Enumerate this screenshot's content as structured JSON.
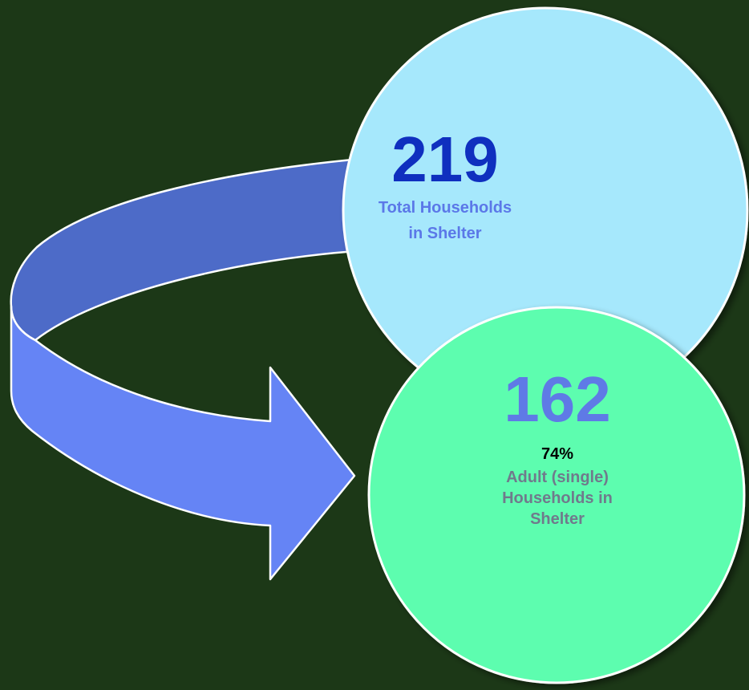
{
  "colors": {
    "background": "#1c3817",
    "arrow_top_band": "#4d6bc8",
    "arrow_front_band": "#6584f5",
    "top_circle_fill": "#a6e8fc",
    "bottom_circle_fill": "#5dfdaf",
    "top_number": "#0f2fbf",
    "top_label": "#5b78e8",
    "bottom_number": "#5f7ae6",
    "bottom_percent": "#000000",
    "bottom_label": "#707a8c"
  },
  "top_circle": {
    "number": "219",
    "label_line1": "Total Households",
    "label_line2": "in Shelter"
  },
  "bottom_circle": {
    "number": "162",
    "percent": "74%",
    "label_line1": "Adult (single)",
    "label_line2": "Households in",
    "label_line3": "Shelter"
  }
}
